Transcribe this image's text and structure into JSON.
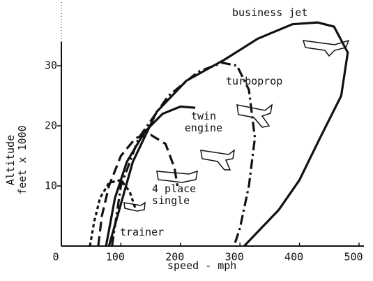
{
  "chart_data": {
    "type": "line",
    "x_label": "speed - mph",
    "y_label": "Altitude feet x 1000",
    "xlim": [
      0,
      500
    ],
    "ylim": [
      0,
      40
    ],
    "xticks": [
      0,
      100,
      200,
      300,
      400,
      500
    ],
    "yticks": [
      10,
      20,
      30
    ],
    "series": [
      {
        "name": "trainer",
        "color": "#111111",
        "dash": "dotted",
        "x": [
          48,
          55,
          65,
          80,
          100,
          115,
          125
        ],
        "values": [
          0,
          4,
          8,
          10.5,
          11,
          9,
          6
        ]
      },
      {
        "name": "4 place single",
        "color": "#111111",
        "dash": "dashed",
        "x": [
          62,
          68,
          80,
          100,
          125,
          150,
          175,
          190,
          195
        ],
        "values": [
          0,
          5,
          10,
          15,
          18,
          18.5,
          17,
          13,
          10
        ]
      },
      {
        "name": "twin engine",
        "color": "#111111",
        "dash": "solid",
        "x": [
          75,
          90,
          110,
          140,
          170,
          200,
          225
        ],
        "values": [
          0,
          8,
          14,
          19,
          22,
          23.2,
          23
        ]
      },
      {
        "name": "turboprop",
        "color": "#111111",
        "dash": "dashdot",
        "x": [
          85,
          100,
          130,
          180,
          230,
          270,
          295,
          315,
          325,
          315,
          300,
          290
        ],
        "values": [
          0,
          10,
          18,
          25,
          29,
          30.5,
          30,
          26,
          18,
          10,
          3,
          0
        ]
      },
      {
        "name": "business jet",
        "color": "#111111",
        "dash": "solid",
        "x": [
          80,
          120,
          160,
          210,
          274,
          330,
          388,
          430,
          458,
          481,
          470,
          433,
          400,
          365,
          307
        ],
        "values": [
          0,
          14,
          22.3,
          27.5,
          31,
          34.5,
          36.9,
          37.2,
          36.5,
          32.2,
          25,
          17.7,
          11,
          6,
          0
        ]
      }
    ]
  }
}
